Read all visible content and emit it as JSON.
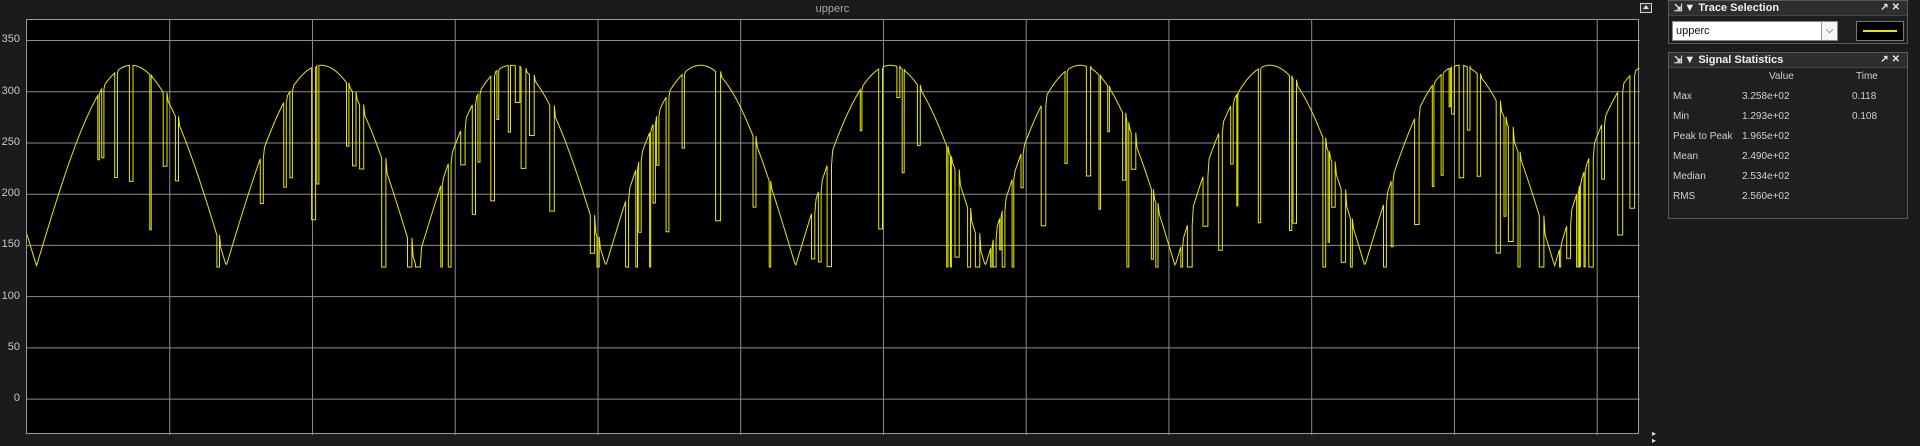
{
  "scope": {
    "title": "upperc",
    "y_ticks": [
      "350",
      "300",
      "250",
      "200",
      "150",
      "100",
      "50",
      "0"
    ],
    "trace_color": "#e8e800",
    "grid_color": "#8c8c8c",
    "undock_icon": "undock-icon"
  },
  "chart_data": {
    "type": "line",
    "title": "upperc",
    "xlabel": "",
    "ylabel": "",
    "ylim": [
      -35,
      370
    ],
    "y_ticks": [
      0,
      50,
      100,
      150,
      200,
      250,
      300,
      350
    ],
    "x_gridlines": 11,
    "grid": true,
    "series": [
      {
        "name": "upperc",
        "color": "#e8e800",
        "description_values": {
          "max": 325.8,
          "min": 129.3,
          "mean": 249.0,
          "cycles": 8.5
        }
      }
    ]
  },
  "trace_selection": {
    "title": "Trace Selection",
    "selected": "upperc",
    "line_color": "#e8e800"
  },
  "signal_statistics": {
    "title": "Signal Statistics",
    "headers": {
      "value": "Value",
      "time": "Time"
    },
    "rows": [
      {
        "label": "Max",
        "value": "3.258e+02",
        "time": "0.118"
      },
      {
        "label": "Min",
        "value": "1.293e+02",
        "time": "0.108"
      },
      {
        "label": "Peak to Peak",
        "value": "1.965e+02",
        "time": ""
      },
      {
        "label": "Mean",
        "value": "2.490e+02",
        "time": ""
      },
      {
        "label": "Median",
        "value": "2.534e+02",
        "time": ""
      },
      {
        "label": "RMS",
        "value": "2.560e+02",
        "time": ""
      }
    ]
  }
}
